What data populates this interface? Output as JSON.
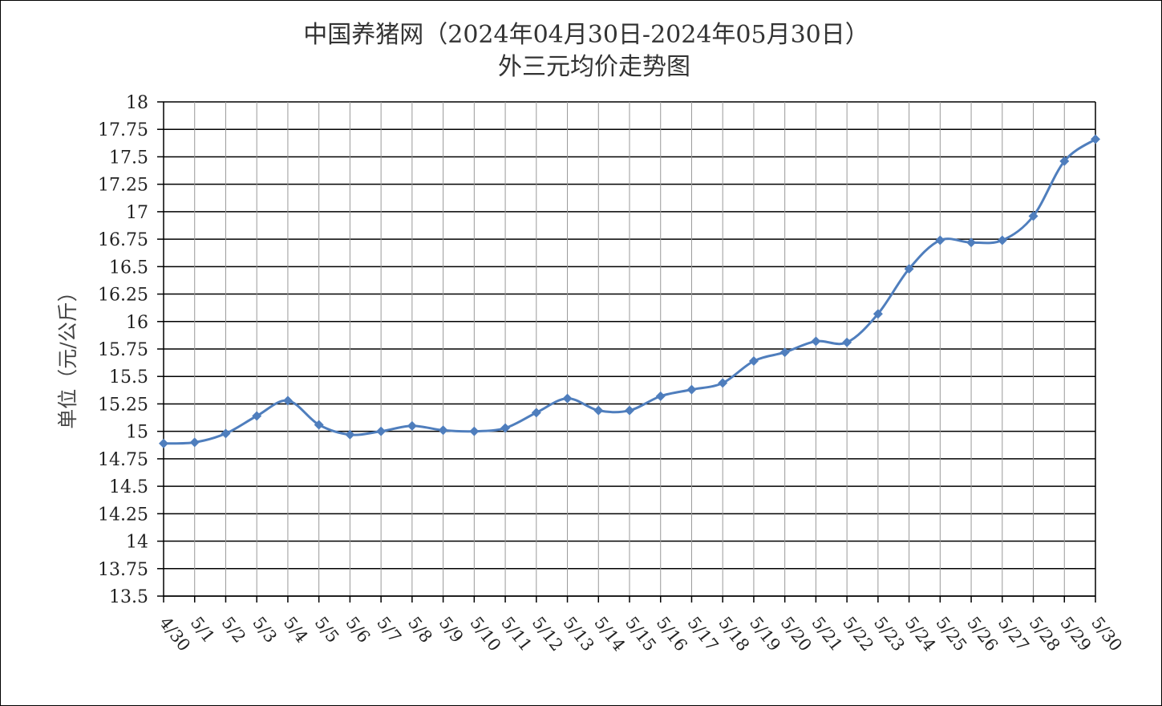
{
  "chart_data": {
    "type": "line",
    "title": "中国养猪网（2024年04月30日-2024年05月30日）",
    "subtitle": "外三元均价走势图",
    "xlabel": "",
    "ylabel": "单位（元/公斤）",
    "ylim": [
      13.5,
      18
    ],
    "yticks": [
      "13.5",
      "13.75",
      "14",
      "14.25",
      "14.5",
      "14.75",
      "15",
      "15.25",
      "15.5",
      "15.75",
      "16",
      "16.25",
      "16.5",
      "16.75",
      "17",
      "17.25",
      "17.5",
      "17.75",
      "18"
    ],
    "grid": true,
    "legend": "none",
    "categories": [
      "4/30",
      "5/1",
      "5/2",
      "5/3",
      "5/4",
      "5/5",
      "5/6",
      "5/7",
      "5/8",
      "5/9",
      "5/10",
      "5/11",
      "5/12",
      "5/13",
      "5/14",
      "5/15",
      "5/16",
      "5/17",
      "5/18",
      "5/19",
      "5/20",
      "5/21",
      "5/22",
      "5/23",
      "5/24",
      "5/25",
      "5/26",
      "5/27",
      "5/28",
      "5/29",
      "5/30"
    ],
    "series": [
      {
        "values": [
          14.89,
          14.9,
          14.98,
          15.14,
          15.28,
          15.06,
          14.97,
          15.0,
          15.05,
          15.01,
          15.0,
          15.03,
          15.17,
          15.3,
          15.19,
          15.19,
          15.32,
          15.38,
          15.44,
          15.64,
          15.72,
          15.82,
          15.81,
          16.07,
          16.48,
          16.74,
          16.72,
          16.74,
          16.96,
          17.46,
          17.66
        ],
        "color": "#4F7EBD",
        "marker": "diamond"
      }
    ]
  }
}
